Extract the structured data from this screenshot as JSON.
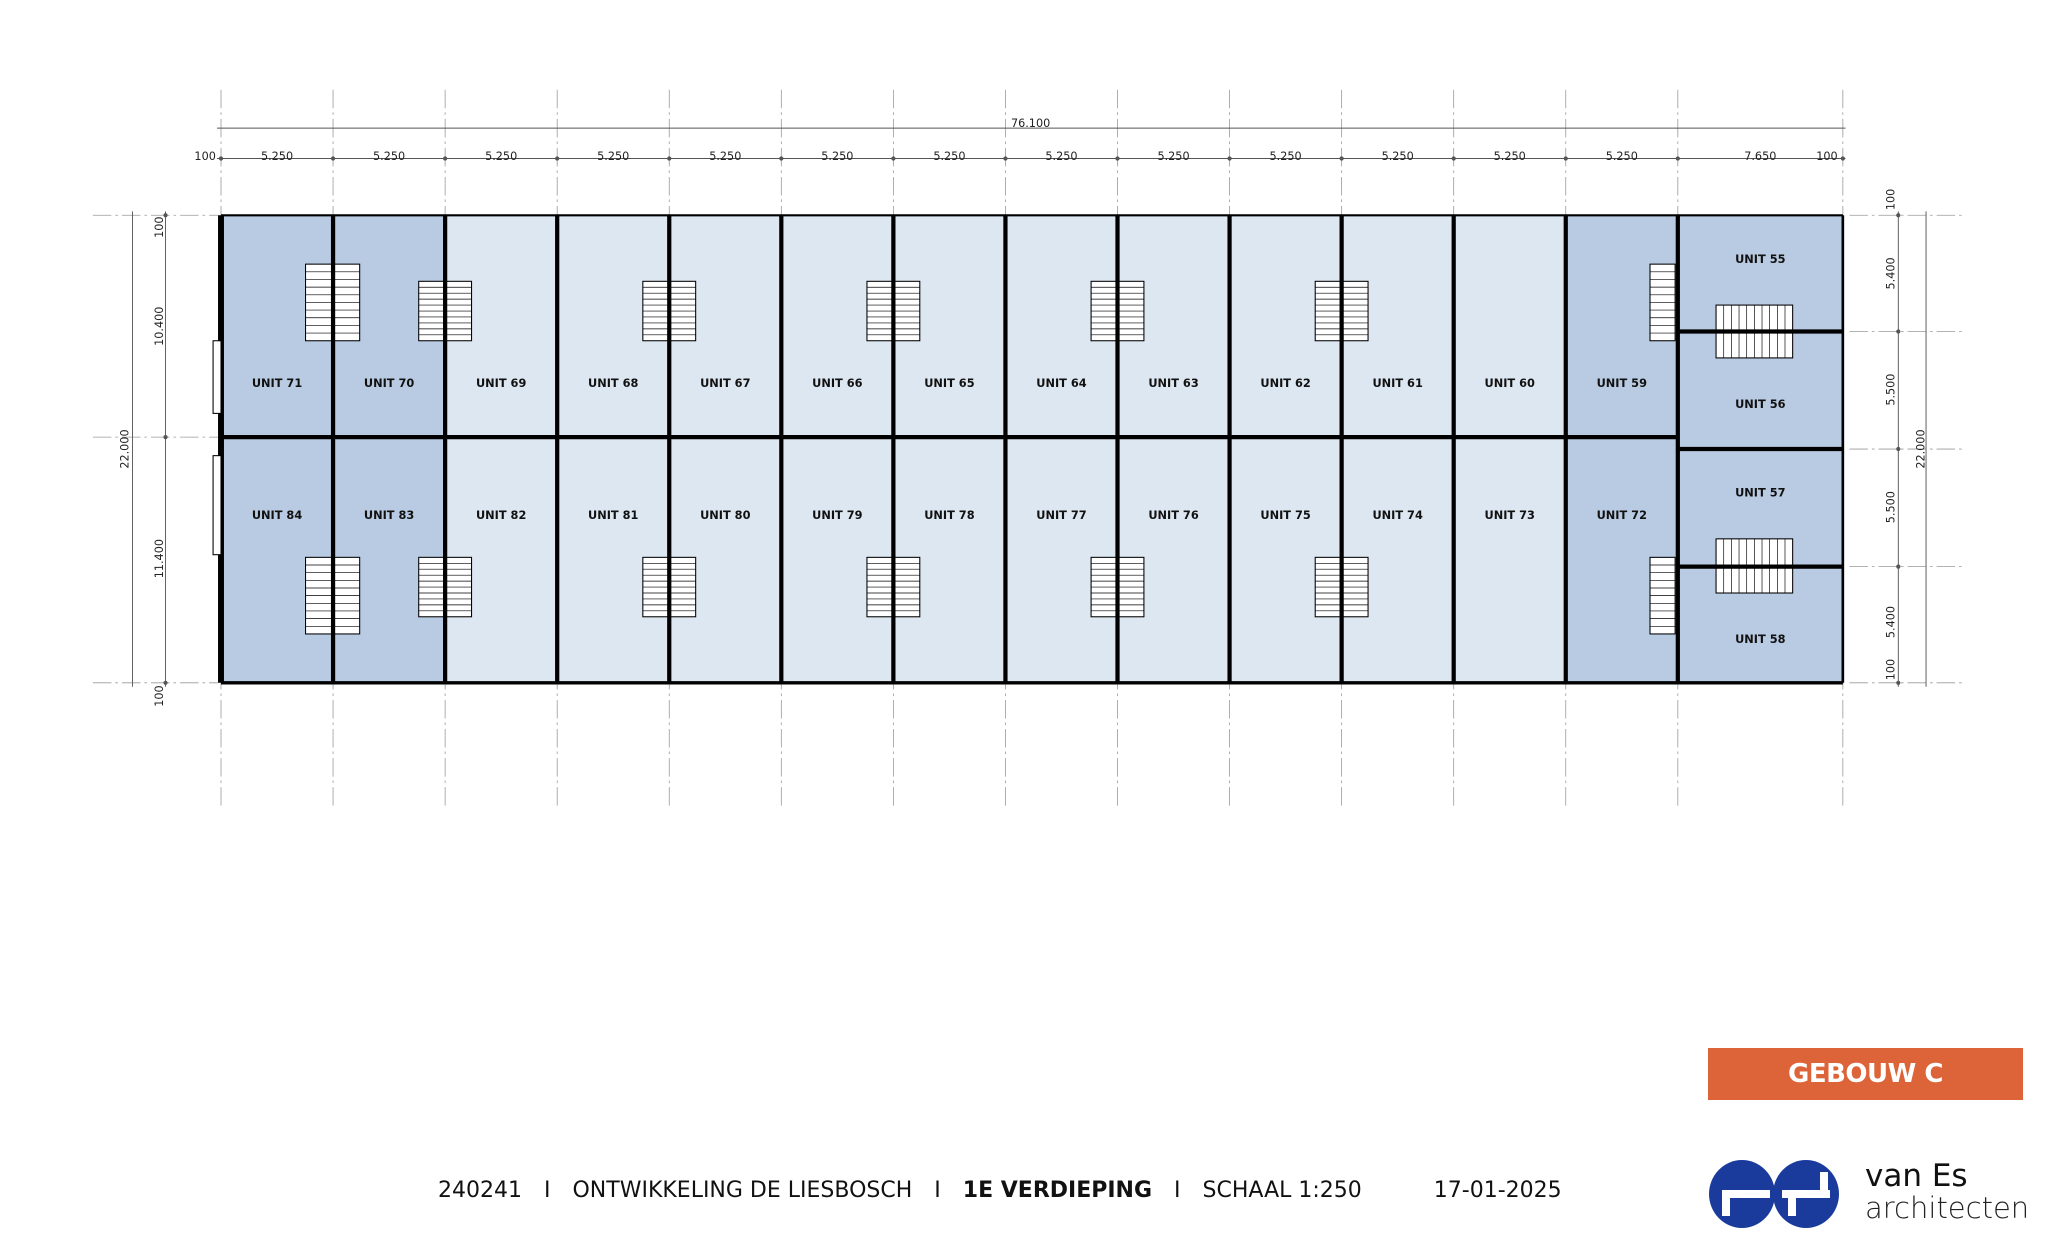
{
  "drawing": {
    "dimensions": {
      "top_total": "76.100",
      "top_segments": [
        "100",
        "5.250",
        "5.250",
        "5.250",
        "5.250",
        "5.250",
        "5.250",
        "5.250",
        "5.250",
        "5.250",
        "5.250",
        "5.250",
        "5.250",
        "5.250",
        "7.650",
        "100"
      ],
      "left_total": "22.000",
      "left_segments": [
        "100",
        "10.400",
        "11.400",
        "100"
      ],
      "right_total": "22.000",
      "right_segments": [
        "100",
        "5.400",
        "5.500",
        "5.500",
        "5.400",
        "100"
      ]
    },
    "top_row_units": [
      "UNIT 71",
      "UNIT 70",
      "UNIT 69",
      "UNIT 68",
      "UNIT 67",
      "UNIT 66",
      "UNIT 65",
      "UNIT 64",
      "UNIT 63",
      "UNIT 62",
      "UNIT 61",
      "UNIT 60",
      "UNIT 59"
    ],
    "bottom_row_units": [
      "UNIT 84",
      "UNIT 83",
      "UNIT 82",
      "UNIT 81",
      "UNIT 80",
      "UNIT 79",
      "UNIT 78",
      "UNIT 77",
      "UNIT 76",
      "UNIT 75",
      "UNIT 74",
      "UNIT 73",
      "UNIT 72"
    ],
    "right_block_units": [
      "UNIT 55",
      "UNIT 56",
      "UNIT 57",
      "UNIT 58"
    ],
    "colors": {
      "unit_dark": "#b9cbe2",
      "unit_light": "#dde7f1",
      "wall": "#000000"
    }
  },
  "badge": {
    "label": "GEBOUW C",
    "color": "#dc6438"
  },
  "footer": {
    "project_no": "240241",
    "separator": "I",
    "project_name": "ONTWIKKELING DE LIESBOSCH",
    "floor": "1E VERDIEPING",
    "scale": "SCHAAL 1:250",
    "date": "17-01-2025"
  },
  "logo": {
    "line1": "van Es",
    "line2": "architecten",
    "color": "#1a3b9c"
  }
}
